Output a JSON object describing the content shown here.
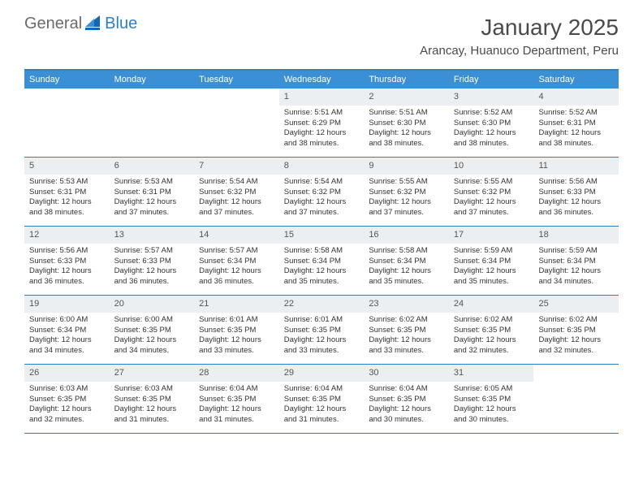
{
  "logo": {
    "general": "General",
    "blue": "Blue"
  },
  "title": "January 2025",
  "location": "Arancay, Huanuco Department, Peru",
  "colors": {
    "header_bar": "#3b8fd4",
    "border": "#2a7fc7",
    "daynum_bg": "#eceff1",
    "logo_gray": "#6b6b6b",
    "logo_blue": "#2a7fc7"
  },
  "weekdays": [
    "Sunday",
    "Monday",
    "Tuesday",
    "Wednesday",
    "Thursday",
    "Friday",
    "Saturday"
  ],
  "weeks": [
    [
      {
        "n": "",
        "sr": "",
        "ss": "",
        "dl": "",
        "empty": true
      },
      {
        "n": "",
        "sr": "",
        "ss": "",
        "dl": "",
        "empty": true
      },
      {
        "n": "",
        "sr": "",
        "ss": "",
        "dl": "",
        "empty": true
      },
      {
        "n": "1",
        "sr": "Sunrise: 5:51 AM",
        "ss": "Sunset: 6:29 PM",
        "dl": "Daylight: 12 hours and 38 minutes."
      },
      {
        "n": "2",
        "sr": "Sunrise: 5:51 AM",
        "ss": "Sunset: 6:30 PM",
        "dl": "Daylight: 12 hours and 38 minutes."
      },
      {
        "n": "3",
        "sr": "Sunrise: 5:52 AM",
        "ss": "Sunset: 6:30 PM",
        "dl": "Daylight: 12 hours and 38 minutes."
      },
      {
        "n": "4",
        "sr": "Sunrise: 5:52 AM",
        "ss": "Sunset: 6:31 PM",
        "dl": "Daylight: 12 hours and 38 minutes."
      }
    ],
    [
      {
        "n": "5",
        "sr": "Sunrise: 5:53 AM",
        "ss": "Sunset: 6:31 PM",
        "dl": "Daylight: 12 hours and 38 minutes."
      },
      {
        "n": "6",
        "sr": "Sunrise: 5:53 AM",
        "ss": "Sunset: 6:31 PM",
        "dl": "Daylight: 12 hours and 37 minutes."
      },
      {
        "n": "7",
        "sr": "Sunrise: 5:54 AM",
        "ss": "Sunset: 6:32 PM",
        "dl": "Daylight: 12 hours and 37 minutes."
      },
      {
        "n": "8",
        "sr": "Sunrise: 5:54 AM",
        "ss": "Sunset: 6:32 PM",
        "dl": "Daylight: 12 hours and 37 minutes."
      },
      {
        "n": "9",
        "sr": "Sunrise: 5:55 AM",
        "ss": "Sunset: 6:32 PM",
        "dl": "Daylight: 12 hours and 37 minutes."
      },
      {
        "n": "10",
        "sr": "Sunrise: 5:55 AM",
        "ss": "Sunset: 6:32 PM",
        "dl": "Daylight: 12 hours and 37 minutes."
      },
      {
        "n": "11",
        "sr": "Sunrise: 5:56 AM",
        "ss": "Sunset: 6:33 PM",
        "dl": "Daylight: 12 hours and 36 minutes."
      }
    ],
    [
      {
        "n": "12",
        "sr": "Sunrise: 5:56 AM",
        "ss": "Sunset: 6:33 PM",
        "dl": "Daylight: 12 hours and 36 minutes."
      },
      {
        "n": "13",
        "sr": "Sunrise: 5:57 AM",
        "ss": "Sunset: 6:33 PM",
        "dl": "Daylight: 12 hours and 36 minutes."
      },
      {
        "n": "14",
        "sr": "Sunrise: 5:57 AM",
        "ss": "Sunset: 6:34 PM",
        "dl": "Daylight: 12 hours and 36 minutes."
      },
      {
        "n": "15",
        "sr": "Sunrise: 5:58 AM",
        "ss": "Sunset: 6:34 PM",
        "dl": "Daylight: 12 hours and 35 minutes."
      },
      {
        "n": "16",
        "sr": "Sunrise: 5:58 AM",
        "ss": "Sunset: 6:34 PM",
        "dl": "Daylight: 12 hours and 35 minutes."
      },
      {
        "n": "17",
        "sr": "Sunrise: 5:59 AM",
        "ss": "Sunset: 6:34 PM",
        "dl": "Daylight: 12 hours and 35 minutes."
      },
      {
        "n": "18",
        "sr": "Sunrise: 5:59 AM",
        "ss": "Sunset: 6:34 PM",
        "dl": "Daylight: 12 hours and 34 minutes."
      }
    ],
    [
      {
        "n": "19",
        "sr": "Sunrise: 6:00 AM",
        "ss": "Sunset: 6:34 PM",
        "dl": "Daylight: 12 hours and 34 minutes."
      },
      {
        "n": "20",
        "sr": "Sunrise: 6:00 AM",
        "ss": "Sunset: 6:35 PM",
        "dl": "Daylight: 12 hours and 34 minutes."
      },
      {
        "n": "21",
        "sr": "Sunrise: 6:01 AM",
        "ss": "Sunset: 6:35 PM",
        "dl": "Daylight: 12 hours and 33 minutes."
      },
      {
        "n": "22",
        "sr": "Sunrise: 6:01 AM",
        "ss": "Sunset: 6:35 PM",
        "dl": "Daylight: 12 hours and 33 minutes."
      },
      {
        "n": "23",
        "sr": "Sunrise: 6:02 AM",
        "ss": "Sunset: 6:35 PM",
        "dl": "Daylight: 12 hours and 33 minutes."
      },
      {
        "n": "24",
        "sr": "Sunrise: 6:02 AM",
        "ss": "Sunset: 6:35 PM",
        "dl": "Daylight: 12 hours and 32 minutes."
      },
      {
        "n": "25",
        "sr": "Sunrise: 6:02 AM",
        "ss": "Sunset: 6:35 PM",
        "dl": "Daylight: 12 hours and 32 minutes."
      }
    ],
    [
      {
        "n": "26",
        "sr": "Sunrise: 6:03 AM",
        "ss": "Sunset: 6:35 PM",
        "dl": "Daylight: 12 hours and 32 minutes."
      },
      {
        "n": "27",
        "sr": "Sunrise: 6:03 AM",
        "ss": "Sunset: 6:35 PM",
        "dl": "Daylight: 12 hours and 31 minutes."
      },
      {
        "n": "28",
        "sr": "Sunrise: 6:04 AM",
        "ss": "Sunset: 6:35 PM",
        "dl": "Daylight: 12 hours and 31 minutes."
      },
      {
        "n": "29",
        "sr": "Sunrise: 6:04 AM",
        "ss": "Sunset: 6:35 PM",
        "dl": "Daylight: 12 hours and 31 minutes."
      },
      {
        "n": "30",
        "sr": "Sunrise: 6:04 AM",
        "ss": "Sunset: 6:35 PM",
        "dl": "Daylight: 12 hours and 30 minutes."
      },
      {
        "n": "31",
        "sr": "Sunrise: 6:05 AM",
        "ss": "Sunset: 6:35 PM",
        "dl": "Daylight: 12 hours and 30 minutes."
      },
      {
        "n": "",
        "sr": "",
        "ss": "",
        "dl": "",
        "empty": true
      }
    ]
  ]
}
